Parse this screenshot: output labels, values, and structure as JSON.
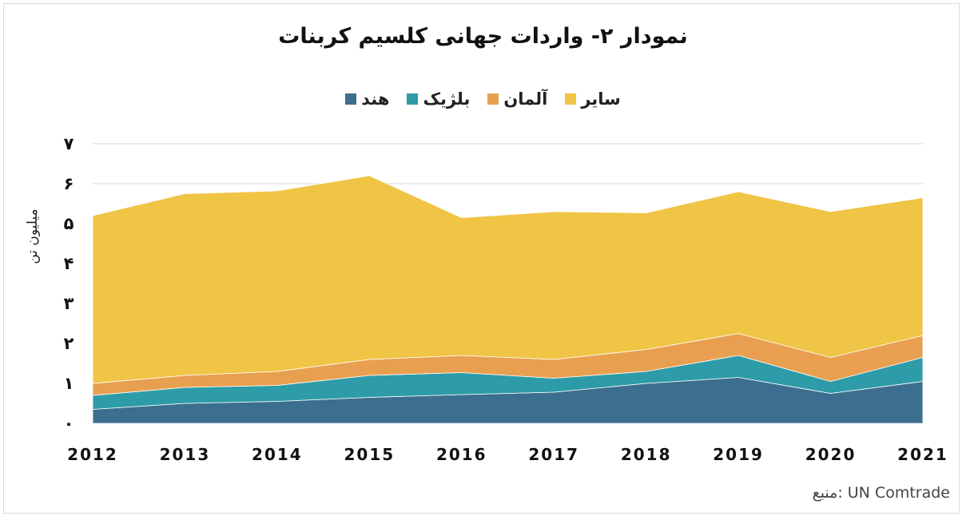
{
  "title": "نمودار ۲- واردات جهانی کلسیم کربنات",
  "ylabel": "میلیون تن",
  "source": "منبع: UN Comtrade",
  "chart_data": {
    "type": "area",
    "stacked": true,
    "x": [
      "2012",
      "2013",
      "2014",
      "2015",
      "2016",
      "2017",
      "2018",
      "2019",
      "2020",
      "2021"
    ],
    "y_ticks": [
      "۰",
      "۱",
      "۲",
      "۳",
      "۴",
      "۵",
      "۶",
      "۷"
    ],
    "ylim": [
      0,
      7
    ],
    "grid": true,
    "legend_position": "top",
    "series": [
      {
        "name": "هند",
        "color": "#3C6E8F",
        "values": [
          0.35,
          0.5,
          0.55,
          0.65,
          0.72,
          0.78,
          1.0,
          1.15,
          0.75,
          1.05
        ]
      },
      {
        "name": "بلژیک",
        "color": "#2E9BA8",
        "values": [
          0.35,
          0.4,
          0.4,
          0.55,
          0.55,
          0.35,
          0.3,
          0.55,
          0.3,
          0.6
        ]
      },
      {
        "name": "آلمان",
        "color": "#E8A050",
        "values": [
          0.3,
          0.3,
          0.35,
          0.4,
          0.43,
          0.47,
          0.55,
          0.55,
          0.6,
          0.55
        ]
      },
      {
        "name": "سایر",
        "color": "#F0C445",
        "values": [
          4.2,
          4.55,
          4.52,
          4.6,
          3.45,
          3.7,
          3.42,
          3.55,
          3.65,
          3.45
        ]
      }
    ]
  }
}
